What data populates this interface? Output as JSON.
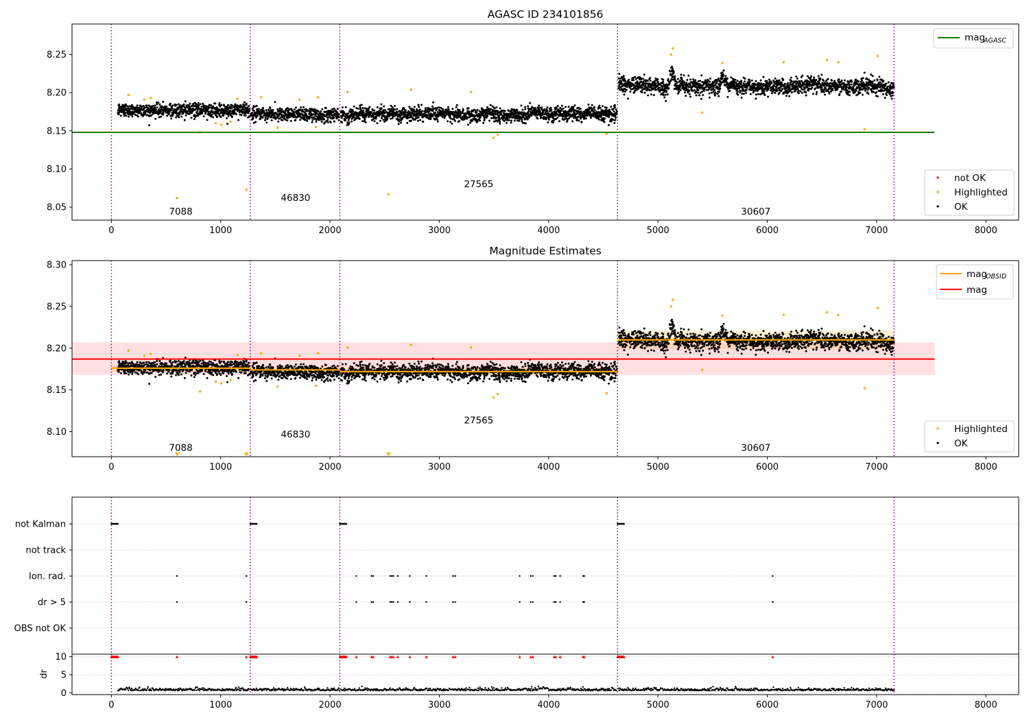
{
  "chart_data": [
    {
      "type": "scatter",
      "title": "AGASC ID 234101856",
      "xlim": [
        -360,
        8300
      ],
      "ylim": [
        8.033,
        8.29
      ],
      "xticks": [
        0,
        1000,
        2000,
        3000,
        4000,
        5000,
        6000,
        7000,
        8000
      ],
      "yticks": [
        8.05,
        8.1,
        8.15,
        8.2,
        8.25
      ],
      "obsid_boundaries": [
        0,
        1270,
        2090,
        4630,
        7160
      ],
      "obsid_labels": [
        {
          "text": "7088",
          "x": 635,
          "y": 8.04
        },
        {
          "text": "46830",
          "x": 1685,
          "y": 8.058
        },
        {
          "text": "27565",
          "x": 3360,
          "y": 8.076
        },
        {
          "text": "30607",
          "x": 5895,
          "y": 8.04
        }
      ],
      "hlines": [
        {
          "name": "mag_AGASC",
          "y": 8.148,
          "xrange": [
            -360,
            7530
          ],
          "color": "#008000"
        }
      ],
      "series": [
        {
          "name": "not OK",
          "color": "#ff0000",
          "segments": []
        },
        {
          "name": "Highlighted",
          "color": "#ffa500",
          "points": [
            [
              155,
              8.197
            ],
            [
              300,
              8.191
            ],
            [
              360,
              8.193
            ],
            [
              600,
              8.062
            ],
            [
              810,
              8.148
            ],
            [
              955,
              8.16
            ],
            [
              1005,
              8.158
            ],
            [
              1090,
              8.162
            ],
            [
              1155,
              8.192
            ],
            [
              1235,
              8.073
            ],
            [
              1370,
              8.194
            ],
            [
              1520,
              8.154
            ],
            [
              1720,
              8.191
            ],
            [
              1870,
              8.155
            ],
            [
              1890,
              8.194
            ],
            [
              2160,
              8.201
            ],
            [
              2535,
              8.067
            ],
            [
              2740,
              8.204
            ],
            [
              3290,
              8.201
            ],
            [
              3495,
              8.141
            ],
            [
              3535,
              8.145
            ],
            [
              4530,
              8.146
            ],
            [
              5120,
              8.25
            ],
            [
              5135,
              8.258
            ],
            [
              5405,
              8.174
            ],
            [
              5590,
              8.239
            ],
            [
              6150,
              8.24
            ],
            [
              6545,
              8.243
            ],
            [
              6650,
              8.24
            ],
            [
              6890,
              8.152
            ],
            [
              7010,
              8.248
            ]
          ]
        },
        {
          "name": "OK",
          "color": "#000000",
          "segments": [
            {
              "x0": 60,
              "x1": 1265,
              "base": 8.177,
              "noise": 0.0045,
              "wander": 0.002
            },
            {
              "x0": 1275,
              "x1": 2085,
              "base": 8.172,
              "noise": 0.0045,
              "wander": 0.002
            },
            {
              "x0": 2100,
              "x1": 4625,
              "base": 8.172,
              "noise": 0.0045,
              "wander": 0.006
            },
            {
              "x0": 4640,
              "x1": 7160,
              "base": 8.209,
              "noise": 0.005,
              "wander": 0.006
            }
          ]
        }
      ],
      "legend": {
        "placement": "top-right and lower-right",
        "entries": [
          "mag",
          "not OK",
          "Highlighted",
          "OK"
        ],
        "mag_subscript": "AGASC"
      }
    },
    {
      "type": "scatter",
      "title": "Magnitude Estimates",
      "xlim": [
        -360,
        8300
      ],
      "ylim": [
        8.07,
        8.305
      ],
      "xticks": [
        0,
        1000,
        2000,
        3000,
        4000,
        5000,
        6000,
        7000,
        8000
      ],
      "yticks": [
        8.1,
        8.15,
        8.2,
        8.25,
        8.3
      ],
      "obsid_boundaries": [
        0,
        1270,
        2090,
        4630,
        7160
      ],
      "obsid_labels": [
        {
          "text": "7088",
          "x": 635,
          "y": 8.077
        },
        {
          "text": "46830",
          "x": 1685,
          "y": 8.093
        },
        {
          "text": "27565",
          "x": 3360,
          "y": 8.11
        },
        {
          "text": "30607",
          "x": 5895,
          "y": 8.077
        }
      ],
      "mag_line": {
        "name": "mag",
        "y": 8.187,
        "band": [
          8.168,
          8.207
        ],
        "xrange": [
          -360,
          7530
        ],
        "color": "#ff0000"
      },
      "obsid_mags": [
        {
          "x0": 0,
          "x1": 1270,
          "y": 8.176,
          "band": [
            8.172,
            8.18
          ]
        },
        {
          "x0": 1270,
          "x1": 2090,
          "y": 8.174,
          "band": [
            8.17,
            8.178
          ]
        },
        {
          "x0": 2090,
          "x1": 4630,
          "y": 8.172,
          "band": [
            8.167,
            8.177
          ]
        },
        {
          "x0": 4630,
          "x1": 7160,
          "y": 8.21,
          "band": [
            8.199,
            8.221
          ]
        }
      ],
      "series": [
        {
          "name": "Highlighted",
          "color": "#ffa500",
          "points": [
            [
              155,
              8.197
            ],
            [
              300,
              8.191
            ],
            [
              360,
              8.193
            ],
            [
              810,
              8.148
            ],
            [
              955,
              8.16
            ],
            [
              1005,
              8.158
            ],
            [
              1090,
              8.162
            ],
            [
              1155,
              8.192
            ],
            [
              1370,
              8.194
            ],
            [
              1520,
              8.154
            ],
            [
              1720,
              8.191
            ],
            [
              1870,
              8.155
            ],
            [
              1890,
              8.194
            ],
            [
              2160,
              8.201
            ],
            [
              2740,
              8.204
            ],
            [
              3290,
              8.201
            ],
            [
              3495,
              8.141
            ],
            [
              3535,
              8.145
            ],
            [
              4530,
              8.146
            ],
            [
              5120,
              8.25
            ],
            [
              5135,
              8.258
            ],
            [
              5405,
              8.174
            ],
            [
              5590,
              8.239
            ],
            [
              6150,
              8.24
            ],
            [
              6545,
              8.243
            ],
            [
              6650,
              8.24
            ],
            [
              6890,
              8.152
            ],
            [
              7010,
              8.248
            ]
          ]
        },
        {
          "name": "OK",
          "color": "#000000",
          "same_as_panel": 0
        },
        {
          "name": "out-of-range",
          "color": "#ffa500",
          "marker": "triangle-down",
          "points": [
            [
              600,
              8.072
            ],
            [
              1235,
              8.073
            ],
            [
              2535,
              8.072
            ]
          ]
        }
      ],
      "legend": {
        "placement": "top-right and lower-right",
        "entries": [
          "mag",
          "mag",
          "Highlighted",
          "OK"
        ],
        "mag_subscript": "OBSID"
      }
    },
    {
      "type": "scatter",
      "title": "",
      "xlim": [
        -360,
        8300
      ],
      "categories": [
        "not Kalman",
        "not track",
        "Ion. rad.",
        "dr > 5",
        "OBS not OK"
      ],
      "flags": {
        "not Kalman": [
          [
            0,
            60
          ],
          [
            1270,
            1330
          ],
          [
            2090,
            2150
          ],
          [
            4630,
            4690
          ]
        ],
        "not track": [],
        "Ion. rad.": [
          600,
          1235,
          2240,
          2380,
          2395,
          2550,
          2565,
          2580,
          2620,
          2730,
          2880,
          3125,
          3145,
          3735,
          3835,
          3855,
          4050,
          4065,
          4105,
          4315,
          4325,
          6050
        ],
        "dr > 5": [
          600,
          1235,
          2240,
          2380,
          2395,
          2550,
          2565,
          2580,
          2620,
          2730,
          2880,
          3125,
          3145,
          3735,
          3835,
          3855,
          4050,
          4065,
          4105,
          4315,
          4325,
          6050
        ],
        "OBS not OK": []
      },
      "dr_axis": {
        "ylabel": "dr",
        "ylim": [
          -0.5,
          10.7
        ],
        "yticks": [
          0,
          5,
          10
        ],
        "clip_value": 10,
        "clip_color": "#ff0000",
        "clipped_clusters": [
          [
            0,
            60
          ],
          [
            1270,
            1330
          ],
          [
            2090,
            2150
          ],
          [
            4630,
            4690
          ]
        ],
        "clipped_points": [
          600,
          1235,
          2240,
          2380,
          2395,
          2550,
          2565,
          2580,
          2620,
          2730,
          2880,
          3125,
          3145,
          3735,
          3835,
          3855,
          4050,
          4065,
          4105,
          4315,
          4325,
          6050
        ],
        "typical": 0.6
      },
      "xticks": [
        0,
        1000,
        2000,
        3000,
        4000,
        5000,
        6000,
        7000,
        8000
      ],
      "obsid_boundaries": [
        0,
        1270,
        2090,
        4630,
        7160
      ]
    }
  ]
}
